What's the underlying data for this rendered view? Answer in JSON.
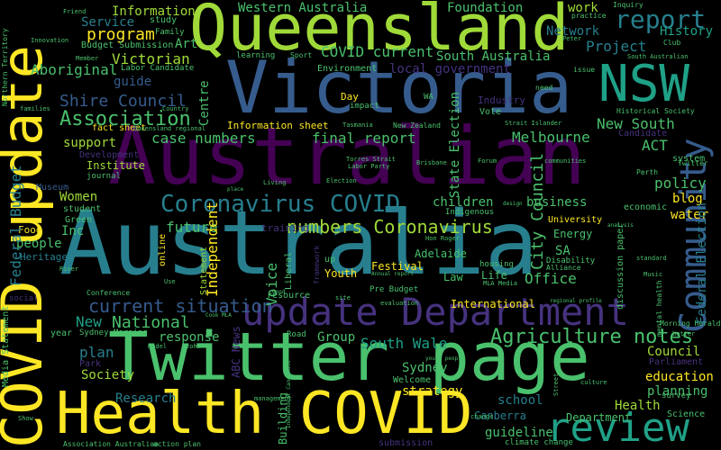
{
  "colors": {
    "background": "#000000",
    "palette": [
      "#440154",
      "#46327e",
      "#365c8d",
      "#277f8e",
      "#1fa187",
      "#4ac16d",
      "#a0da39",
      "#fde725"
    ]
  },
  "words": [
    {
      "id": "w1",
      "text": "Australia",
      "color": "#277f8e"
    },
    {
      "id": "w2",
      "text": "Australian",
      "color": "#440154"
    },
    {
      "id": "w3",
      "text": "Victoria",
      "color": "#365c8d"
    },
    {
      "id": "w4",
      "text": "Queensland",
      "color": "#a0da39"
    },
    {
      "id": "w5",
      "text": "Twitter page",
      "color": "#4ac16d"
    },
    {
      "id": "w6",
      "text": "Health COVID",
      "color": "#fde725"
    },
    {
      "id": "w7",
      "text": "COVID update",
      "color": "#fde725"
    },
    {
      "id": "w8",
      "text": "update Department",
      "color": "#46327e"
    },
    {
      "id": "w9",
      "text": "NSW",
      "color": "#1fa187"
    },
    {
      "id": "w10",
      "text": "Community",
      "color": "#365c8d"
    },
    {
      "id": "w11",
      "text": "review",
      "color": "#1fa187"
    },
    {
      "id": "w12",
      "text": "Coronavirus COVID",
      "color": "#277f8e"
    },
    {
      "id": "w13",
      "text": "report",
      "color": "#277f8e"
    },
    {
      "id": "w14",
      "text": "Association",
      "color": "#4ac16d"
    },
    {
      "id": "w15",
      "text": "Agriculture notes",
      "color": "#4ac16d"
    },
    {
      "id": "w16",
      "text": "numbers Coronavirus",
      "color": "#a0da39"
    },
    {
      "id": "w17",
      "text": "current situation",
      "color": "#365c8d"
    },
    {
      "id": "w18",
      "text": "Shire Council",
      "color": "#365c8d"
    },
    {
      "id": "w19",
      "text": "National",
      "color": "#4ac16d"
    },
    {
      "id": "w20",
      "text": "program",
      "color": "#fde725"
    },
    {
      "id": "w21",
      "text": "Victorian",
      "color": "#a0da39"
    },
    {
      "id": "w22",
      "text": "Aboriginal",
      "color": "#4ac16d"
    },
    {
      "id": "w23",
      "text": "COVID current",
      "color": "#4ac16d"
    },
    {
      "id": "w24",
      "text": "final report",
      "color": "#4ac16d"
    },
    {
      "id": "w25",
      "text": "case numbers",
      "color": "#4ac16d"
    },
    {
      "id": "w26",
      "text": "Melbourne",
      "color": "#4ac16d"
    },
    {
      "id": "w27",
      "text": "New South",
      "color": "#4ac16d"
    },
    {
      "id": "w28",
      "text": "ACT",
      "color": "#4ac16d"
    },
    {
      "id": "w29",
      "text": "policy",
      "color": "#4ac16d"
    },
    {
      "id": "w30",
      "text": "blog",
      "color": "#fde725"
    },
    {
      "id": "w31",
      "text": "Project",
      "color": "#277f8e"
    },
    {
      "id": "w32",
      "text": "Network",
      "color": "#277f8e"
    },
    {
      "id": "w33",
      "text": "History",
      "color": "#1fa187"
    },
    {
      "id": "w34",
      "text": "Western Australia",
      "color": "#4ac16d"
    },
    {
      "id": "w35",
      "text": "Foundation",
      "color": "#4ac16d"
    },
    {
      "id": "w36",
      "text": "Information",
      "color": "#a0da39"
    },
    {
      "id": "w37",
      "text": "Service",
      "color": "#277f8e"
    },
    {
      "id": "w38",
      "text": "Art",
      "color": "#4ac16d"
    },
    {
      "id": "w39",
      "text": "guide",
      "color": "#365c8d"
    },
    {
      "id": "w40",
      "text": "support",
      "color": "#a0da39"
    },
    {
      "id": "w41",
      "text": "Women",
      "color": "#a0da39"
    },
    {
      "id": "w42",
      "text": "Inc",
      "color": "#4ac16d"
    },
    {
      "id": "w43",
      "text": "people",
      "color": "#4ac16d"
    },
    {
      "id": "w44",
      "text": "future",
      "color": "#4ac16d"
    },
    {
      "id": "w45",
      "text": "New",
      "color": "#1fa187"
    },
    {
      "id": "w46",
      "text": "plan",
      "color": "#277f8e"
    },
    {
      "id": "w47",
      "text": "Society",
      "color": "#a0da39"
    },
    {
      "id": "w48",
      "text": "response",
      "color": "#4ac16d"
    },
    {
      "id": "w49",
      "text": "Research",
      "color": "#277f8e"
    },
    {
      "id": "w50",
      "text": "South Wale",
      "color": "#1fa187"
    },
    {
      "id": "w51",
      "text": "Sydney",
      "color": "#4ac16d"
    },
    {
      "id": "w52",
      "text": "Group",
      "color": "#4ac16d"
    },
    {
      "id": "w53",
      "text": "Office",
      "color": "#4ac16d"
    },
    {
      "id": "w54",
      "text": "children",
      "color": "#4ac16d"
    },
    {
      "id": "w55",
      "text": "business",
      "color": "#4ac16d"
    },
    {
      "id": "w56",
      "text": "Council",
      "color": "#a0da39"
    },
    {
      "id": "w57",
      "text": "education",
      "color": "#fde725"
    },
    {
      "id": "w58",
      "text": "planning",
      "color": "#4ac16d"
    },
    {
      "id": "w59",
      "text": "Health",
      "color": "#a0da39"
    },
    {
      "id": "w60",
      "text": "school",
      "color": "#277f8e"
    },
    {
      "id": "w61",
      "text": "strategy",
      "color": "#fde725"
    },
    {
      "id": "w62",
      "text": "guideline",
      "color": "#4ac16d"
    },
    {
      "id": "w63",
      "text": "Canberra",
      "color": "#277f8e"
    },
    {
      "id": "w64",
      "text": "Department",
      "color": "#4ac16d"
    },
    {
      "id": "w65",
      "text": "City Council",
      "color": "#4ac16d"
    },
    {
      "id": "w66",
      "text": "Independent",
      "color": "#fde725"
    },
    {
      "id": "w67",
      "text": "Federal Budget",
      "color": "#277f8e"
    },
    {
      "id": "w68",
      "text": "Centre",
      "color": "#4ac16d"
    },
    {
      "id": "w69",
      "text": "State Election",
      "color": "#4ac16d"
    },
    {
      "id": "w70",
      "text": "Federal Election",
      "color": "#277f8e"
    },
    {
      "id": "w71",
      "text": "Voice",
      "color": "#4ac16d"
    },
    {
      "id": "w72",
      "text": "work",
      "color": "#a0da39"
    },
    {
      "id": "w73",
      "text": "water",
      "color": "#fde725"
    },
    {
      "id": "w74",
      "text": "Energy",
      "color": "#4ac16d"
    },
    {
      "id": "w75",
      "text": "SA",
      "color": "#4ac16d"
    },
    {
      "id": "w76",
      "text": "Adelaide",
      "color": "#4ac16d"
    },
    {
      "id": "w77",
      "text": "Life",
      "color": "#4ac16d"
    },
    {
      "id": "w78",
      "text": "Law",
      "color": "#4ac16d"
    },
    {
      "id": "w79",
      "text": "International",
      "color": "#fde725"
    },
    {
      "id": "w80",
      "text": "Youth",
      "color": "#fde725"
    },
    {
      "id": "w81",
      "text": "Festival",
      "color": "#fde725"
    },
    {
      "id": "w82",
      "text": "Information sheet",
      "color": "#fde725"
    },
    {
      "id": "w83",
      "text": "local government",
      "color": "#46327e"
    },
    {
      "id": "w84",
      "text": "South Australia",
      "color": "#4ac16d"
    },
    {
      "id": "w85",
      "text": "Environment",
      "color": "#4ac16d"
    },
    {
      "id": "w86",
      "text": "Budget Submission",
      "color": "#4ac16d"
    },
    {
      "id": "w87",
      "text": "Labor Candidate",
      "color": "#4ac16d"
    },
    {
      "id": "w88",
      "text": "study",
      "color": "#4ac16d"
    },
    {
      "id": "w89",
      "text": "Family",
      "color": "#4ac16d"
    },
    {
      "id": "w90",
      "text": "Day",
      "color": "#fde725"
    },
    {
      "id": "w91",
      "text": "impact",
      "color": "#4ac16d"
    },
    {
      "id": "w92",
      "text": "Industry",
      "color": "#46327e"
    },
    {
      "id": "w93",
      "text": "Vote",
      "color": "#4ac16d"
    },
    {
      "id": "w94",
      "text": "fact sheet",
      "color": "#fde725"
    },
    {
      "id": "w95",
      "text": "Development",
      "color": "#46327e"
    },
    {
      "id": "w96",
      "text": "Institute",
      "color": "#a0da39"
    },
    {
      "id": "w97",
      "text": "journal",
      "color": "#4ac16d"
    },
    {
      "id": "w98",
      "text": "Museum",
      "color": "#365c8d"
    },
    {
      "id": "w99",
      "text": "student",
      "color": "#4ac16d"
    },
    {
      "id": "w100",
      "text": "Green",
      "color": "#4ac16d"
    },
    {
      "id": "w101",
      "text": "Food",
      "color": "#fde725"
    },
    {
      "id": "w102",
      "text": "Heritage",
      "color": "#277f8e"
    },
    {
      "id": "w103",
      "text": "training",
      "color": "#46327e"
    },
    {
      "id": "w104",
      "text": "online",
      "color": "#fde725"
    },
    {
      "id": "w105",
      "text": "year",
      "color": "#4ac16d"
    },
    {
      "id": "w106",
      "text": "Sydney Morning",
      "color": "#4ac16d"
    },
    {
      "id": "w107",
      "text": "Park",
      "color": "#46327e"
    },
    {
      "id": "w108",
      "text": "Conference",
      "color": "#4ac16d"
    },
    {
      "id": "w109",
      "text": "social",
      "color": "#46327e"
    },
    {
      "id": "w110",
      "text": "Media Statement",
      "color": "#4ac16d"
    },
    {
      "id": "w111",
      "text": "ABC News",
      "color": "#46327e"
    },
    {
      "id": "w112",
      "text": "Road",
      "color": "#4ac16d"
    },
    {
      "id": "w113",
      "text": "Building",
      "color": "#4ac16d"
    },
    {
      "id": "w114",
      "text": "Statement",
      "color": "#a0da39"
    },
    {
      "id": "w115",
      "text": "resource",
      "color": "#4ac16d"
    },
    {
      "id": "w116",
      "text": "Pre Budget",
      "color": "#4ac16d"
    },
    {
      "id": "w117",
      "text": "Welcome",
      "color": "#4ac16d"
    },
    {
      "id": "w118",
      "text": "Liberal",
      "color": "#4ac16d"
    },
    {
      "id": "w119",
      "text": "University",
      "color": "#fde725"
    },
    {
      "id": "w120",
      "text": "economic",
      "color": "#4ac16d"
    },
    {
      "id": "w121",
      "text": "discussion paper",
      "color": "#4ac16d"
    },
    {
      "id": "w122",
      "text": "Disability",
      "color": "#4ac16d"
    },
    {
      "id": "w123",
      "text": "Alliance",
      "color": "#4ac16d"
    },
    {
      "id": "w124",
      "text": "Indigenous",
      "color": "#4ac16d"
    },
    {
      "id": "w125",
      "text": "housing",
      "color": "#4ac16d"
    },
    {
      "id": "w126",
      "text": "Parliament",
      "color": "#46327e"
    },
    {
      "id": "w127",
      "text": "survey",
      "color": "#4ac16d"
    },
    {
      "id": "w128",
      "text": "Science",
      "color": "#4ac16d"
    },
    {
      "id": "w129",
      "text": "mental health",
      "color": "#4ac16d"
    },
    {
      "id": "w130",
      "text": "Morning Herald",
      "color": "#4ac16d"
    },
    {
      "id": "w131",
      "text": "Candidate",
      "color": "#46327e"
    },
    {
      "id": "w132",
      "text": "system",
      "color": "#4ac16d"
    },
    {
      "id": "w133",
      "text": "Twitter",
      "color": "#4ac16d"
    },
    {
      "id": "w134",
      "text": "Perth",
      "color": "#4ac16d"
    },
    {
      "id": "w135",
      "text": "Historical Society",
      "color": "#4ac16d"
    },
    {
      "id": "w136",
      "text": "South Australian",
      "color": "#4ac16d"
    },
    {
      "id": "w137",
      "text": "Club",
      "color": "#4ac16d"
    },
    {
      "id": "w138",
      "text": "Inquiry",
      "color": "#4ac16d"
    },
    {
      "id": "w139",
      "text": "practice",
      "color": "#4ac16d"
    },
    {
      "id": "w140",
      "text": "issue",
      "color": "#4ac16d"
    },
    {
      "id": "w141",
      "text": "need",
      "color": "#4ac16d"
    },
    {
      "id": "w142",
      "text": "Northern Territory",
      "color": "#4ac16d"
    },
    {
      "id": "w143",
      "text": "Friend",
      "color": "#4ac16d"
    },
    {
      "id": "w144",
      "text": "Innovation",
      "color": "#4ac16d"
    },
    {
      "id": "w145",
      "text": "Member",
      "color": "#4ac16d"
    },
    {
      "id": "w146",
      "text": "learning",
      "color": "#4ac16d"
    },
    {
      "id": "w147",
      "text": "Sport",
      "color": "#4ac16d"
    },
    {
      "id": "w148",
      "text": "Queensland regional",
      "color": "#4ac16d"
    },
    {
      "id": "w149",
      "text": "Tasmania",
      "color": "#4ac16d"
    },
    {
      "id": "w150",
      "text": "WA",
      "color": "#4ac16d"
    },
    {
      "id": "w151",
      "text": "New Zealand",
      "color": "#4ac16d"
    },
    {
      "id": "w152",
      "text": "Strait Islander",
      "color": "#4ac16d"
    },
    {
      "id": "w153",
      "text": "Torres Strait",
      "color": "#4ac16d"
    },
    {
      "id": "w154",
      "text": "Labor Party",
      "color": "#4ac16d"
    },
    {
      "id": "w155",
      "text": "Brisbane",
      "color": "#4ac16d"
    },
    {
      "id": "w156",
      "text": "Forum",
      "color": "#4ac16d"
    },
    {
      "id": "w157",
      "text": "communities",
      "color": "#4ac16d"
    },
    {
      "id": "w158",
      "text": "Election",
      "color": "#4ac16d"
    },
    {
      "id": "w159",
      "text": "Living",
      "color": "#4ac16d"
    },
    {
      "id": "w160",
      "text": "Hon Roger",
      "color": "#4ac16d"
    },
    {
      "id": "w161",
      "text": "Annual report",
      "color": "#4ac16d"
    },
    {
      "id": "w162",
      "text": "MLA Media",
      "color": "#4ac16d"
    },
    {
      "id": "w163",
      "text": "Music",
      "color": "#4ac16d"
    },
    {
      "id": "w164",
      "text": "standard",
      "color": "#4ac16d"
    },
    {
      "id": "w165",
      "text": "River",
      "color": "#4ac16d"
    },
    {
      "id": "w166",
      "text": "framework",
      "color": "#46327e"
    },
    {
      "id": "w167",
      "text": "site",
      "color": "#4ac16d"
    },
    {
      "id": "w168",
      "text": "evaluation",
      "color": "#4ac16d"
    },
    {
      "id": "w169",
      "text": "regional profile",
      "color": "#4ac16d"
    },
    {
      "id": "w170",
      "text": "better",
      "color": "#4ac16d"
    },
    {
      "id": "w171",
      "text": "young people",
      "color": "#4ac16d"
    },
    {
      "id": "w172",
      "text": "model",
      "color": "#4ac16d"
    },
    {
      "id": "w173",
      "text": "John",
      "color": "#4ac16d"
    },
    {
      "id": "w174",
      "text": "management",
      "color": "#4ac16d"
    },
    {
      "id": "w175",
      "text": "culture",
      "color": "#4ac16d"
    },
    {
      "id": "w176",
      "text": "climate change",
      "color": "#4ac16d"
    },
    {
      "id": "w177",
      "text": "action plan",
      "color": "#4ac16d"
    },
    {
      "id": "w178",
      "text": "Association Australian",
      "color": "#4ac16d"
    },
    {
      "id": "w179",
      "text": "Show",
      "color": "#4ac16d"
    },
    {
      "id": "w180",
      "text": "submission",
      "color": "#46327e"
    },
    {
      "id": "w181",
      "text": "change",
      "color": "#4ac16d"
    },
    {
      "id": "w182",
      "text": "Independent Candidate",
      "color": "#4ac16d"
    },
    {
      "id": "w183",
      "text": "Peter",
      "color": "#4ac16d"
    },
    {
      "id": "w184",
      "text": "up",
      "color": "#4ac16d"
    },
    {
      "id": "w185",
      "text": "Country",
      "color": "#4ac16d"
    },
    {
      "id": "w186",
      "text": "families",
      "color": "#4ac16d"
    },
    {
      "id": "w187",
      "text": "Cook MLA",
      "color": "#4ac16d"
    },
    {
      "id": "w188",
      "text": "Use",
      "color": "#4ac16d"
    },
    {
      "id": "w189",
      "text": "design",
      "color": "#4ac16d"
    },
    {
      "id": "w190",
      "text": "analysis",
      "color": "#4ac16d"
    },
    {
      "id": "w191",
      "text": "Street",
      "color": "#4ac16d"
    },
    {
      "id": "w192",
      "text": "Good",
      "color": "#4ac16d"
    },
    {
      "id": "w193",
      "text": "place",
      "color": "#4ac16d"
    }
  ]
}
